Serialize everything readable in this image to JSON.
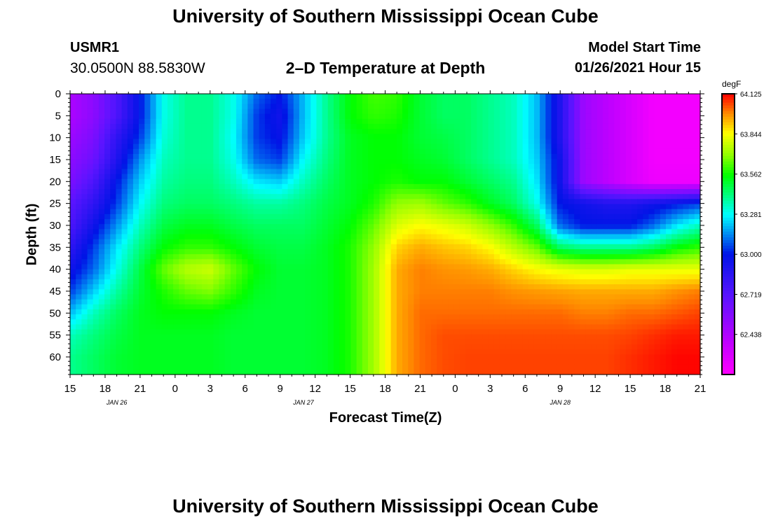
{
  "header": {
    "title": "University of Southern Mississippi Ocean Cube",
    "station_id": "USMR1",
    "coordinates": "30.0500N 88.5830W",
    "subtitle": "2–D Temperature at Depth",
    "model_start_label": "Model Start Time",
    "model_start_value": "01/26/2021 Hour 15"
  },
  "footer": {
    "title": "University of Southern Mississippi Ocean Cube"
  },
  "chart_data": {
    "type": "heatmap",
    "title": "2–D Temperature at Depth",
    "xlabel": "Forecast Time(Z)",
    "ylabel": "Depth (ft)",
    "x_tick_labels": [
      "15",
      "18",
      "21",
      "0",
      "3",
      "6",
      "9",
      "12",
      "15",
      "18",
      "21",
      "0",
      "3",
      "6",
      "9",
      "12",
      "15",
      "18",
      "21"
    ],
    "x_hours": [
      15,
      18,
      21,
      24,
      27,
      30,
      33,
      36,
      39,
      42,
      45,
      48,
      51,
      54,
      57,
      60,
      63,
      66,
      69
    ],
    "date_labels": [
      {
        "hour": 19,
        "text": "JAN 26"
      },
      {
        "hour": 35,
        "text": "JAN 27"
      },
      {
        "hour": 57,
        "text": "JAN 28"
      }
    ],
    "y_ticks": [
      0,
      5,
      10,
      15,
      20,
      25,
      30,
      35,
      40,
      45,
      50,
      55,
      60
    ],
    "ylim": [
      0,
      64
    ],
    "colorbar": {
      "unit": "degF",
      "min": 62.157,
      "max": 64.125,
      "tick_values": [
        62.438,
        62.719,
        63.0,
        63.281,
        63.562,
        63.844,
        64.125
      ],
      "tick_labels": [
        "62.438",
        "62.719",
        "63.000",
        "63.281",
        "63.562",
        "63.844",
        "64.125"
      ]
    },
    "grid_x_hours": [
      15,
      17,
      19,
      21,
      23,
      25,
      27,
      29,
      31,
      33,
      35,
      37,
      39,
      41,
      43,
      45,
      47,
      49,
      51,
      53,
      55,
      57,
      59,
      61,
      63,
      65,
      67,
      69
    ],
    "grid_depths": [
      0,
      5,
      10,
      15,
      20,
      25,
      30,
      35,
      40,
      45,
      50,
      55,
      60,
      64
    ],
    "values": [
      [
        62.45,
        62.55,
        62.75,
        63.0,
        63.3,
        63.4,
        63.4,
        63.3,
        63.1,
        63.0,
        63.2,
        63.4,
        63.55,
        63.62,
        63.6,
        63.5,
        63.45,
        63.45,
        63.4,
        63.35,
        63.2,
        62.9,
        62.5,
        62.4,
        62.3,
        62.2,
        62.2,
        62.2
      ],
      [
        62.45,
        62.55,
        62.75,
        63.0,
        63.3,
        63.4,
        63.4,
        63.3,
        63.05,
        62.95,
        63.2,
        63.4,
        63.55,
        63.6,
        63.58,
        63.5,
        63.45,
        63.45,
        63.4,
        63.35,
        63.2,
        62.9,
        62.5,
        62.4,
        62.3,
        62.2,
        62.2,
        62.2
      ],
      [
        62.5,
        62.6,
        62.85,
        63.05,
        63.32,
        63.4,
        63.4,
        63.28,
        63.05,
        62.98,
        63.22,
        63.4,
        63.52,
        63.55,
        63.55,
        63.5,
        63.48,
        63.45,
        63.4,
        63.35,
        63.2,
        62.9,
        62.5,
        62.4,
        62.3,
        62.2,
        62.2,
        62.2
      ],
      [
        62.55,
        62.65,
        62.9,
        63.15,
        63.35,
        63.4,
        63.4,
        63.3,
        63.1,
        63.05,
        63.28,
        63.42,
        63.52,
        63.55,
        63.55,
        63.52,
        63.5,
        63.45,
        63.4,
        63.35,
        63.22,
        62.95,
        62.5,
        62.4,
        62.3,
        62.2,
        62.2,
        62.2
      ],
      [
        62.6,
        62.75,
        63.0,
        63.22,
        63.38,
        63.42,
        63.42,
        63.35,
        63.25,
        63.22,
        63.35,
        63.45,
        63.52,
        63.55,
        63.58,
        63.55,
        63.55,
        63.5,
        63.45,
        63.4,
        63.25,
        62.95,
        62.5,
        62.4,
        62.3,
        62.22,
        62.22,
        62.22
      ],
      [
        62.7,
        62.85,
        63.05,
        63.28,
        63.42,
        63.45,
        63.45,
        63.42,
        63.38,
        63.38,
        63.42,
        63.48,
        63.52,
        63.58,
        63.7,
        63.72,
        63.65,
        63.6,
        63.52,
        63.45,
        63.3,
        63.0,
        62.95,
        62.9,
        62.9,
        62.95,
        63.0,
        63.05
      ],
      [
        62.75,
        62.95,
        63.15,
        63.35,
        63.48,
        63.52,
        63.52,
        63.48,
        63.45,
        63.45,
        63.45,
        63.5,
        63.55,
        63.65,
        63.8,
        63.85,
        63.82,
        63.78,
        63.7,
        63.6,
        63.45,
        63.1,
        63.0,
        63.0,
        63.0,
        63.1,
        63.25,
        63.35
      ],
      [
        62.85,
        63.05,
        63.25,
        63.42,
        63.55,
        63.6,
        63.6,
        63.55,
        63.5,
        63.48,
        63.48,
        63.52,
        63.58,
        63.7,
        63.9,
        63.95,
        63.92,
        63.9,
        63.85,
        63.75,
        63.65,
        63.45,
        63.4,
        63.4,
        63.4,
        63.45,
        63.55,
        63.6
      ],
      [
        62.95,
        63.1,
        63.3,
        63.48,
        63.65,
        63.75,
        63.78,
        63.65,
        63.55,
        63.5,
        63.5,
        63.52,
        63.58,
        63.72,
        63.95,
        64.0,
        63.98,
        63.97,
        63.95,
        63.9,
        63.85,
        63.82,
        63.8,
        63.8,
        63.82,
        63.82,
        63.82,
        63.82
      ],
      [
        63.05,
        63.22,
        63.38,
        63.5,
        63.58,
        63.65,
        63.68,
        63.6,
        63.52,
        63.5,
        63.5,
        63.52,
        63.58,
        63.72,
        63.95,
        64.0,
        64.0,
        64.0,
        64.0,
        63.98,
        63.97,
        63.96,
        63.95,
        63.95,
        63.95,
        63.95,
        63.98,
        64.0
      ],
      [
        63.2,
        63.35,
        63.45,
        63.52,
        63.55,
        63.55,
        63.55,
        63.52,
        63.5,
        63.5,
        63.5,
        63.52,
        63.58,
        63.72,
        63.95,
        64.02,
        64.02,
        64.02,
        64.02,
        64.02,
        64.02,
        64.02,
        64.0,
        64.0,
        64.02,
        64.02,
        64.04,
        64.06
      ],
      [
        63.35,
        63.42,
        63.48,
        63.52,
        63.52,
        63.52,
        63.52,
        63.5,
        63.5,
        63.5,
        63.5,
        63.52,
        63.58,
        63.72,
        63.95,
        64.02,
        64.05,
        64.05,
        64.05,
        64.05,
        64.05,
        64.05,
        64.05,
        64.05,
        64.06,
        64.08,
        64.1,
        64.1
      ],
      [
        63.4,
        63.45,
        63.5,
        63.52,
        63.52,
        63.52,
        63.52,
        63.5,
        63.5,
        63.5,
        63.5,
        63.52,
        63.58,
        63.72,
        63.95,
        64.02,
        64.05,
        64.06,
        64.06,
        64.06,
        64.06,
        64.06,
        64.06,
        64.06,
        64.08,
        64.1,
        64.12,
        64.12
      ],
      [
        63.4,
        63.45,
        63.5,
        63.52,
        63.52,
        63.52,
        63.52,
        63.5,
        63.5,
        63.5,
        63.5,
        63.52,
        63.58,
        63.72,
        63.95,
        64.02,
        64.05,
        64.06,
        64.06,
        64.06,
        64.06,
        64.06,
        64.06,
        64.06,
        64.08,
        64.1,
        64.12,
        64.12
      ]
    ]
  }
}
